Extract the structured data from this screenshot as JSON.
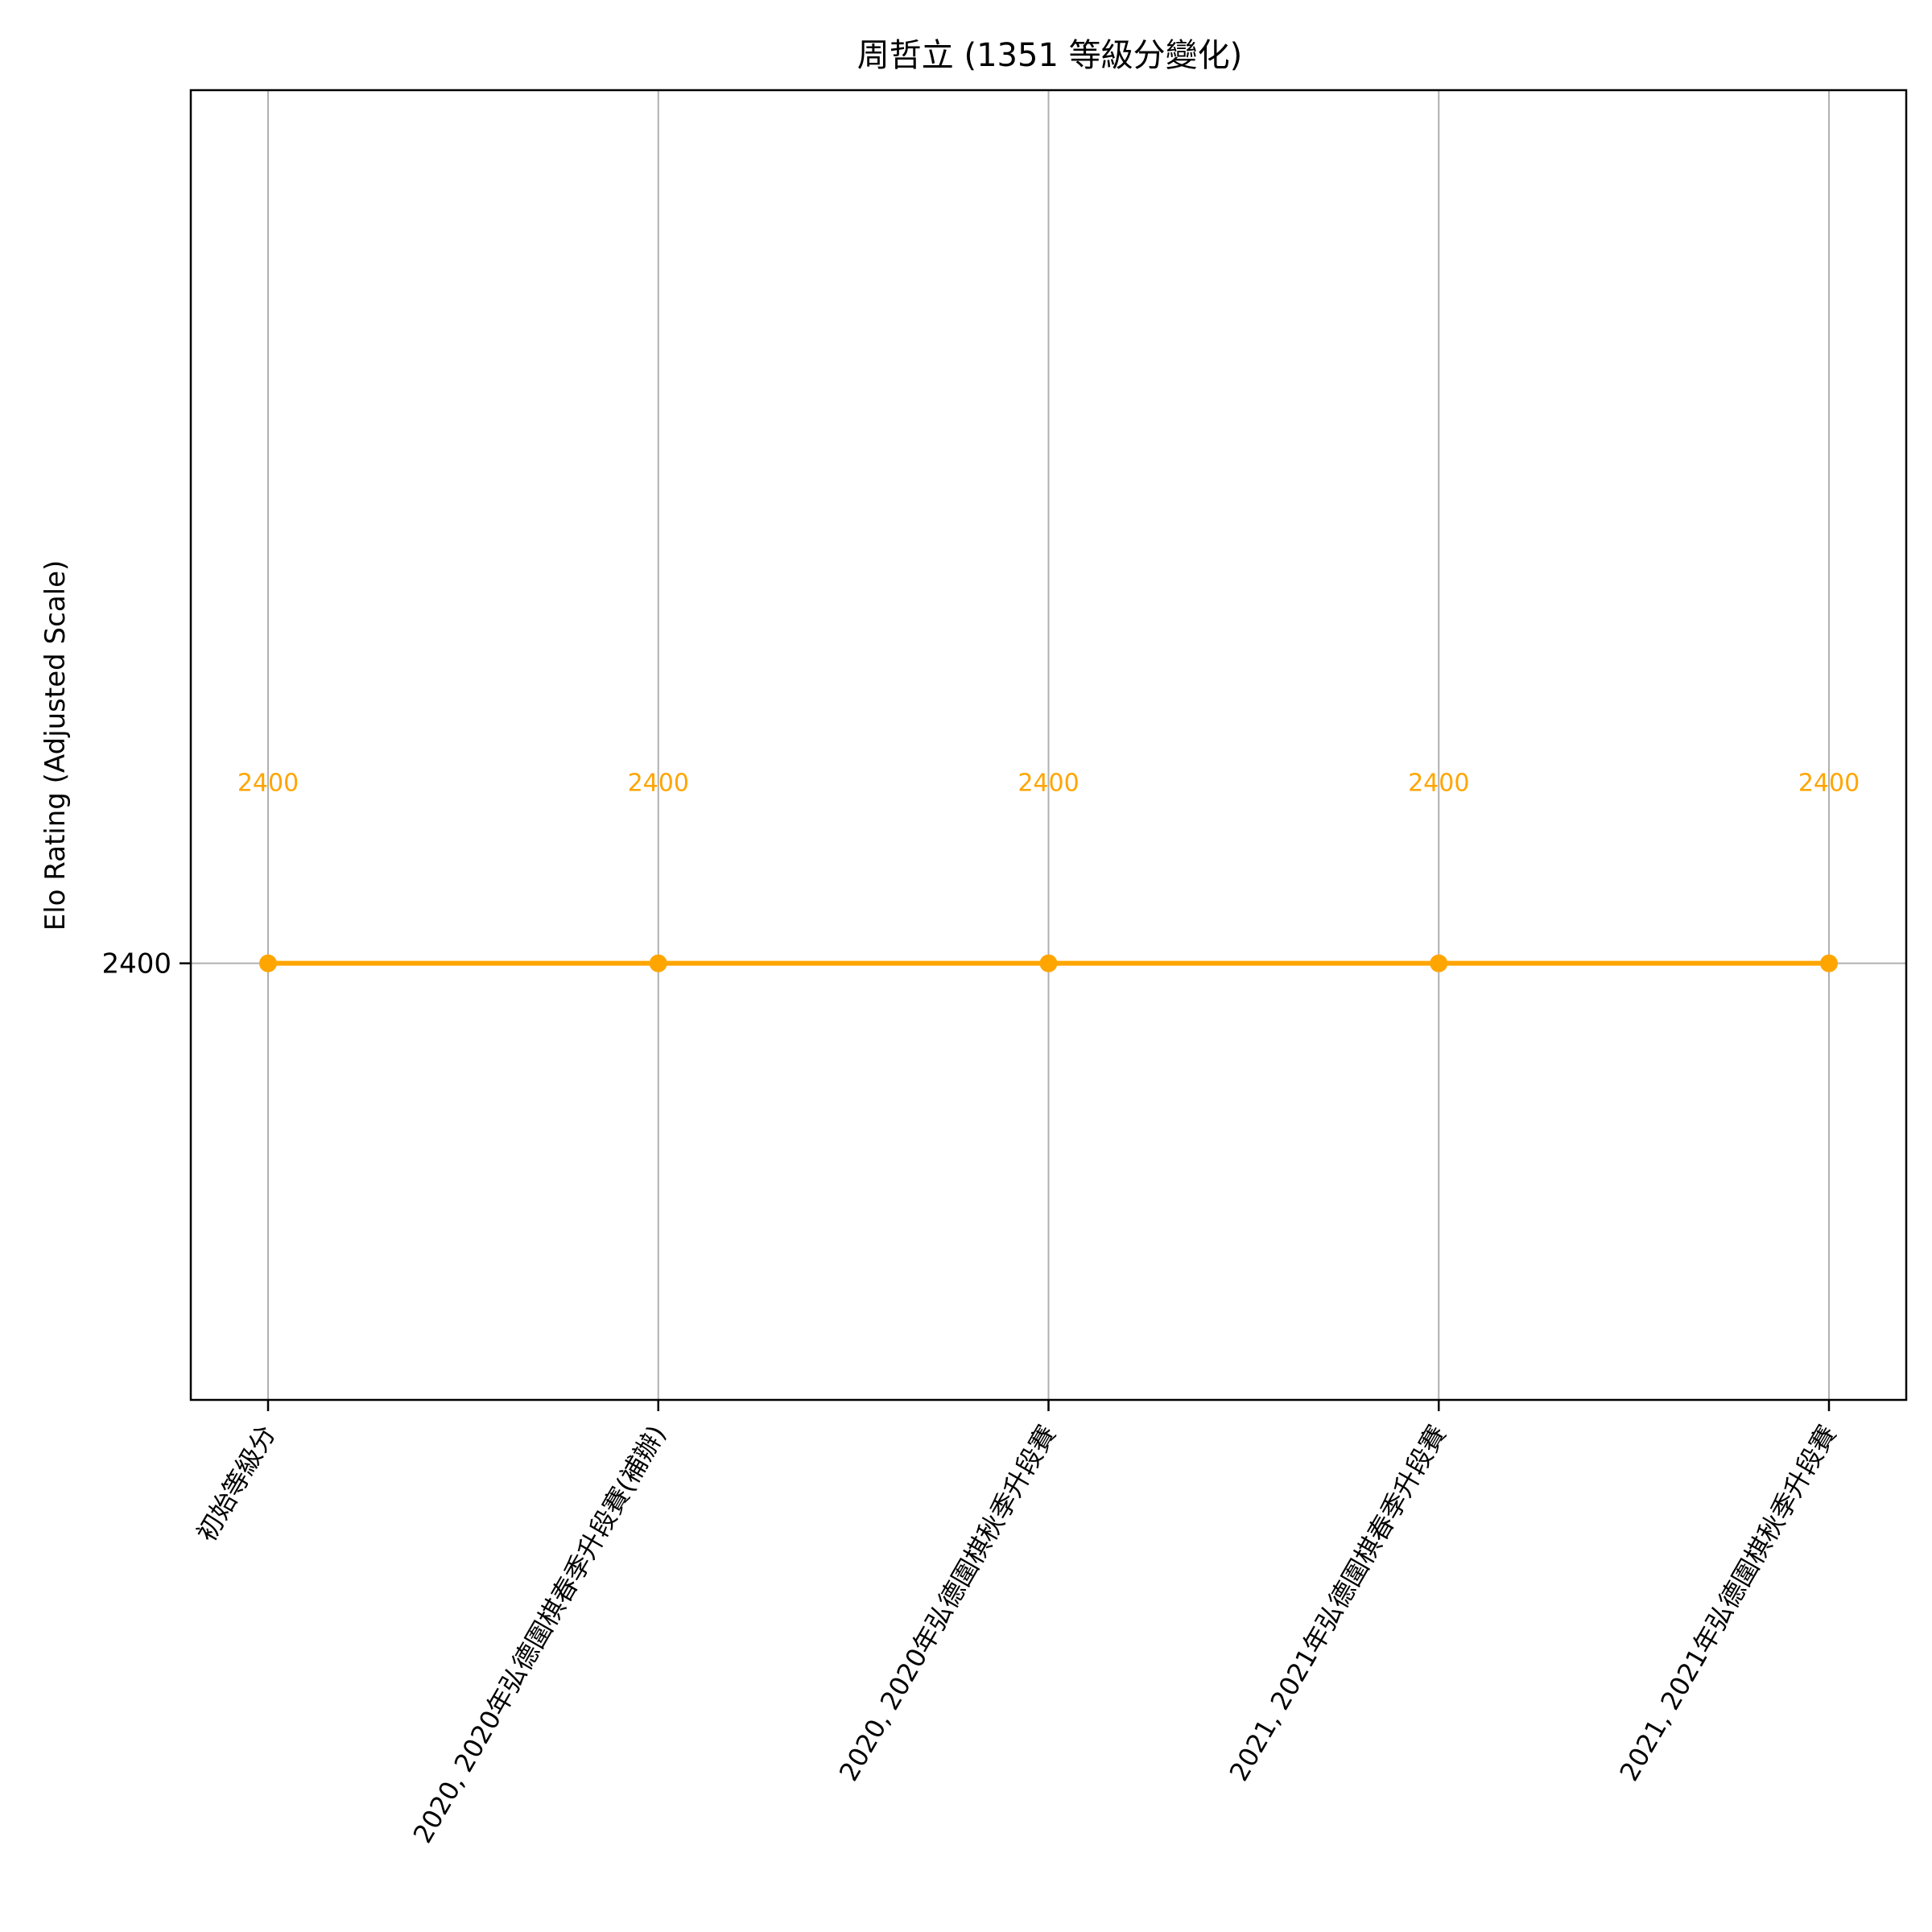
{
  "chart_data": {
    "type": "line",
    "title": "周哲立 (1351 等級分變化)",
    "xlabel": "",
    "ylabel": "Elo Rating (Adjusted Scale)",
    "categories": [
      "初始等級分",
      "2020, 2020年弘德圍棋春季升段賽(補辦)",
      "2020, 2020年弘德圍棋秋季升段賽",
      "2021, 2021年弘德圍棋春季升段賽",
      "2021, 2021年弘德圍棋秋季升段賽"
    ],
    "series": [
      {
        "values": [
          2400,
          2400,
          2400,
          2400,
          2400
        ],
        "color": "#ffa500",
        "marker": "circle"
      }
    ],
    "data_labels": [
      "2400",
      "2400",
      "2400",
      "2400",
      "2400"
    ],
    "yticks": [
      2400
    ],
    "ytick_labels": [
      "2400"
    ],
    "ylim": [
      2399.5,
      2401.0
    ],
    "grid": true,
    "legend": "none"
  }
}
